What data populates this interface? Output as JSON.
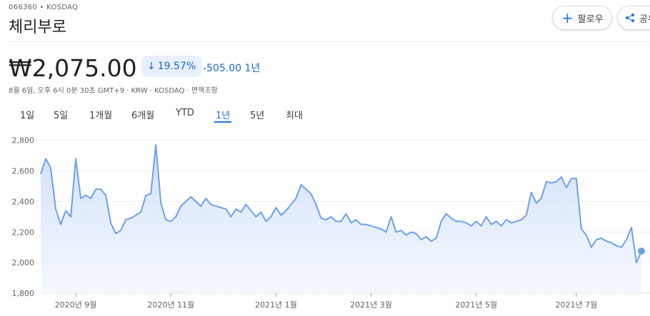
{
  "header": {
    "ticker": "066360 • KOSDAQ",
    "name": "체리부로",
    "follow": "팔로우",
    "share": "공유"
  },
  "quote": {
    "price": "₩2,075.00",
    "change_pct": "19.57%",
    "change": "-505.00",
    "period": "1년",
    "timestamp": "8월 6일, 오후 6시 0분 30초 GMT+9 · KRW · KOSDAQ · ",
    "disclaimer": "면책조항"
  },
  "tabs": {
    "items": [
      "1일",
      "5일",
      "1개월",
      "6개월",
      "YTD",
      "1년",
      "5년",
      "최대"
    ],
    "selected": 5
  },
  "chart_data": {
    "type": "area",
    "color": "#6ea0ec",
    "grid": true,
    "categories": [
      null,
      null,
      null,
      null,
      null,
      null,
      null,
      "2020년 9월",
      null,
      null,
      null,
      null,
      null,
      null,
      null,
      null,
      null,
      null,
      null,
      null,
      null,
      null,
      null,
      null,
      null,
      null,
      "2020년 11월",
      null,
      null,
      null,
      null,
      null,
      null,
      null,
      null,
      null,
      null,
      null,
      null,
      null,
      null,
      null,
      null,
      null,
      null,
      null,
      null,
      "2021년 1월",
      null,
      null,
      null,
      null,
      null,
      null,
      null,
      null,
      null,
      null,
      null,
      null,
      null,
      null,
      null,
      null,
      null,
      null,
      "2021년 3월",
      null,
      null,
      null,
      null,
      null,
      null,
      null,
      null,
      null,
      null,
      null,
      null,
      null,
      null,
      null,
      null,
      null,
      null,
      null,
      null,
      "2021년 5월",
      null,
      null,
      null,
      null,
      null,
      null,
      null,
      null,
      null,
      null,
      null,
      null,
      null,
      null,
      null,
      null,
      null,
      null,
      null,
      "2021년 7월",
      null,
      null,
      null,
      null,
      null,
      null,
      null,
      null,
      null,
      null,
      null,
      null,
      null
    ],
    "values": [
      2580,
      2680,
      2620,
      2350,
      2250,
      2340,
      2300,
      2680,
      2420,
      2440,
      2420,
      2480,
      2480,
      2440,
      2260,
      2190,
      2210,
      2280,
      2290,
      2310,
      2330,
      2440,
      2450,
      2770,
      2390,
      2280,
      2270,
      2300,
      2370,
      2400,
      2430,
      2400,
      2370,
      2420,
      2380,
      2370,
      2360,
      2350,
      2300,
      2350,
      2330,
      2380,
      2340,
      2300,
      2330,
      2270,
      2300,
      2360,
      2310,
      2340,
      2380,
      2420,
      2510,
      2480,
      2450,
      2380,
      2290,
      2280,
      2300,
      2270,
      2270,
      2320,
      2260,
      2280,
      2250,
      2250,
      2240,
      2230,
      2220,
      2200,
      2300,
      2200,
      2210,
      2180,
      2200,
      2190,
      2150,
      2170,
      2140,
      2160,
      2270,
      2320,
      2290,
      2270,
      2270,
      2260,
      2240,
      2270,
      2240,
      2300,
      2250,
      2270,
      2240,
      2280,
      2260,
      2270,
      2280,
      2310,
      2460,
      2390,
      2420,
      2530,
      2520,
      2530,
      2560,
      2490,
      2550,
      2550,
      2220,
      2180,
      2100,
      2150,
      2160,
      2140,
      2130,
      2110,
      2100,
      2150,
      2230,
      2000,
      2075
    ],
    "ylim": [
      1800,
      2850
    ],
    "yticks": [
      {
        "value": 1800,
        "label": "1,800"
      },
      {
        "value": 2000,
        "label": "2,000"
      },
      {
        "value": 2200,
        "label": "2,200"
      },
      {
        "value": 2400,
        "label": "2,400"
      },
      {
        "value": 2600,
        "label": "2,600"
      },
      {
        "value": 2800,
        "label": "2,800"
      }
    ]
  }
}
